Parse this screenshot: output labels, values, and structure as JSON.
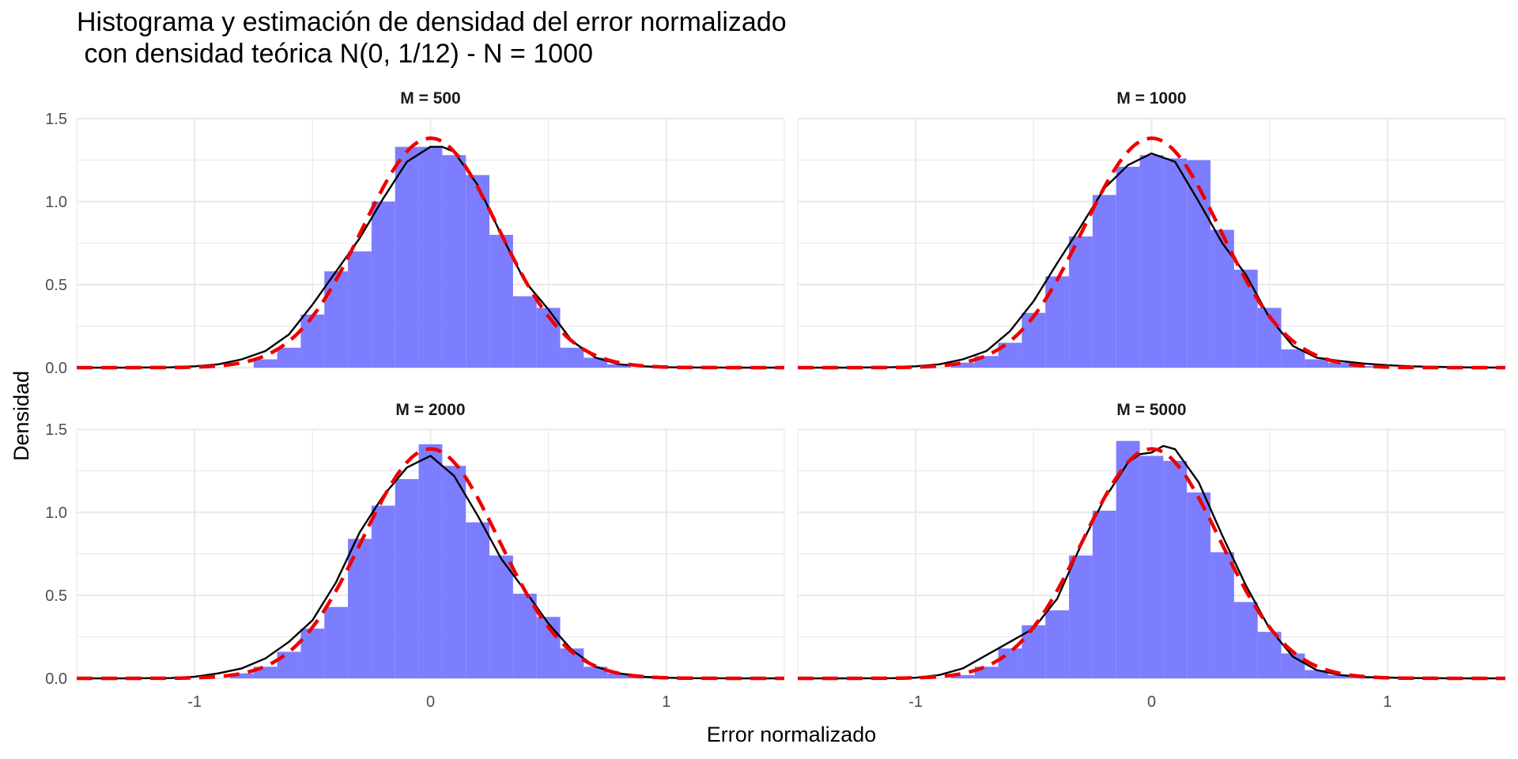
{
  "chart_data": {
    "type": "histogram",
    "title_line1": "Histograma y estimación de densidad del error normalizado",
    "title_line2": " con densidad teórica N(0, 1/12) - N = 1000",
    "xlabel": "Error normalizado",
    "ylabel": "Densidad",
    "xlim": [
      -1.5,
      1.5
    ],
    "ylim": [
      0,
      1.5
    ],
    "x_ticks": [
      -1,
      0,
      1
    ],
    "y_ticks": [
      0.0,
      0.5,
      1.0,
      1.5
    ],
    "y_tick_labels": [
      "0.0",
      "0.5",
      "1.0",
      "1.5"
    ],
    "grid": true,
    "colors": {
      "histogram": "#7a7aff",
      "kde": "#000000",
      "theoretical": "#ee0000",
      "grid": "#ebebeb"
    },
    "bin_width": 0.1,
    "bin_centers": [
      -0.8,
      -0.7,
      -0.6,
      -0.5,
      -0.4,
      -0.3,
      -0.2,
      -0.1,
      0.0,
      0.1,
      0.2,
      0.3,
      0.4,
      0.5,
      0.6,
      0.7,
      0.8,
      0.9
    ],
    "panels": [
      {
        "label": "M = 500",
        "histogram": [
          0.0,
          0.05,
          0.12,
          0.32,
          0.58,
          0.7,
          1.0,
          1.33,
          1.33,
          1.28,
          1.16,
          0.8,
          0.43,
          0.36,
          0.12,
          0.06,
          0.02,
          0.0
        ],
        "kde_x": [
          -1.5,
          -1.3,
          -1.1,
          -1.0,
          -0.9,
          -0.8,
          -0.7,
          -0.6,
          -0.5,
          -0.4,
          -0.3,
          -0.2,
          -0.1,
          0.0,
          0.05,
          0.1,
          0.2,
          0.3,
          0.4,
          0.5,
          0.6,
          0.7,
          0.8,
          0.9,
          1.0,
          1.1,
          1.3,
          1.5
        ],
        "kde_y": [
          0.0,
          0.0,
          0.002,
          0.008,
          0.02,
          0.05,
          0.1,
          0.2,
          0.38,
          0.58,
          0.78,
          1.02,
          1.24,
          1.33,
          1.33,
          1.3,
          1.1,
          0.8,
          0.52,
          0.35,
          0.16,
          0.06,
          0.02,
          0.008,
          0.003,
          0.001,
          0.0,
          0.0
        ]
      },
      {
        "label": "M = 1000",
        "histogram": [
          0.03,
          0.07,
          0.15,
          0.33,
          0.55,
          0.79,
          1.04,
          1.21,
          1.28,
          1.26,
          1.25,
          0.83,
          0.59,
          0.36,
          0.11,
          0.05,
          0.03,
          0.01
        ],
        "kde_x": [
          -1.5,
          -1.3,
          -1.1,
          -1.0,
          -0.9,
          -0.8,
          -0.7,
          -0.6,
          -0.5,
          -0.4,
          -0.3,
          -0.2,
          -0.1,
          0.0,
          0.1,
          0.2,
          0.3,
          0.4,
          0.5,
          0.6,
          0.7,
          0.8,
          0.9,
          1.0,
          1.1,
          1.3,
          1.5
        ],
        "kde_y": [
          0.0,
          0.0,
          0.003,
          0.008,
          0.02,
          0.05,
          0.1,
          0.22,
          0.4,
          0.63,
          0.85,
          1.08,
          1.22,
          1.29,
          1.24,
          1.0,
          0.75,
          0.56,
          0.3,
          0.13,
          0.06,
          0.04,
          0.025,
          0.015,
          0.008,
          0.002,
          0.0
        ]
      },
      {
        "label": "M = 2000",
        "histogram": [
          0.03,
          0.07,
          0.16,
          0.3,
          0.43,
          0.84,
          1.04,
          1.2,
          1.41,
          1.28,
          0.94,
          0.74,
          0.51,
          0.37,
          0.18,
          0.07,
          0.03,
          0.01
        ],
        "kde_x": [
          -1.5,
          -1.3,
          -1.1,
          -1.0,
          -0.9,
          -0.8,
          -0.7,
          -0.6,
          -0.5,
          -0.4,
          -0.3,
          -0.2,
          -0.1,
          0.0,
          0.1,
          0.2,
          0.3,
          0.4,
          0.5,
          0.6,
          0.7,
          0.8,
          0.9,
          1.0,
          1.1,
          1.3,
          1.5
        ],
        "kde_y": [
          0.0,
          0.0,
          0.002,
          0.01,
          0.03,
          0.06,
          0.12,
          0.22,
          0.35,
          0.58,
          0.88,
          1.1,
          1.27,
          1.34,
          1.22,
          0.98,
          0.72,
          0.53,
          0.33,
          0.17,
          0.07,
          0.03,
          0.01,
          0.004,
          0.001,
          0.0,
          0.0
        ]
      },
      {
        "label": "M = 5000",
        "histogram": [
          0.02,
          0.07,
          0.18,
          0.32,
          0.41,
          0.74,
          1.01,
          1.43,
          1.34,
          1.31,
          1.12,
          0.76,
          0.46,
          0.28,
          0.15,
          0.05,
          0.02,
          0.01
        ],
        "kde_x": [
          -1.5,
          -1.3,
          -1.1,
          -1.0,
          -0.9,
          -0.8,
          -0.7,
          -0.6,
          -0.5,
          -0.4,
          -0.3,
          -0.2,
          -0.1,
          -0.05,
          0.0,
          0.05,
          0.1,
          0.2,
          0.3,
          0.4,
          0.5,
          0.6,
          0.7,
          0.8,
          0.9,
          1.0,
          1.1,
          1.3,
          1.5
        ],
        "kde_y": [
          0.0,
          0.0,
          0.001,
          0.004,
          0.02,
          0.06,
          0.14,
          0.22,
          0.3,
          0.48,
          0.8,
          1.08,
          1.3,
          1.35,
          1.36,
          1.4,
          1.38,
          1.18,
          0.86,
          0.56,
          0.3,
          0.13,
          0.05,
          0.02,
          0.008,
          0.005,
          0.002,
          0.0,
          0.0
        ]
      }
    ]
  }
}
